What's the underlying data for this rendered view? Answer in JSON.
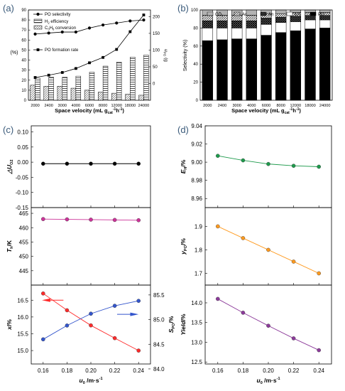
{
  "panel_labels": {
    "a": "(a)",
    "b": "(b)",
    "c": "(c)",
    "d": "(d)"
  },
  "colors": {
    "panel_label": "#3a5a7a",
    "green": "#1e9a4c",
    "orange": "#ff9a1e",
    "purple": "#8c3a9a",
    "magenta": "#cc3399",
    "red": "#ff2a2a",
    "blue": "#3355cc",
    "black": "#000000"
  },
  "chart_data": [
    {
      "id": "a",
      "type": "bar",
      "categories": [
        "2000",
        "2400",
        "3000",
        "4000",
        "6000",
        "8000",
        "12000",
        "18000",
        "24000"
      ],
      "xlabel": "Space velocity (mL g",
      "xlabel_sub": "cat",
      "xlabel_sup": "-1",
      "xlabel_tail": "h",
      "xlabel_end": ")",
      "ylabel_left": "(%)",
      "ylabel_right": "u",
      "ylabel_right_sub": "PO",
      "ylabel_right_tail": " (g",
      "ylim_left": [
        0,
        90
      ],
      "yticks_left": [
        "0",
        "10",
        "20",
        "30",
        "40",
        "50",
        "60",
        "70",
        "80",
        "90"
      ],
      "ylim_right": [
        -50,
        220
      ],
      "yticks_right": [
        "0",
        "50",
        "100",
        "150",
        "200"
      ],
      "legend": [
        "PO selectivity",
        "H",
        "C",
        "PO formation rate"
      ],
      "legend_full": {
        "h2": {
          "base": "H",
          "sub": "2",
          "tail": " efficiency"
        },
        "c3h6": {
          "base": "C",
          "sub1": "3",
          "mid": "H",
          "sub2": "6",
          "tail": " conversion"
        }
      },
      "series": [
        {
          "name": "PO selectivity",
          "kind": "line",
          "axis": "left",
          "values": [
            66,
            67,
            68,
            68,
            72,
            75,
            77,
            79,
            80
          ]
        },
        {
          "name": "PO formation rate",
          "kind": "line",
          "axis": "right",
          "values": [
            18,
            25,
            33,
            45,
            62,
            78,
            102,
            155,
            205
          ]
        },
        {
          "name": "H2 efficiency",
          "kind": "bar",
          "axis": "left",
          "values": [
            22,
            23,
            23,
            24,
            28,
            34,
            38,
            43,
            45
          ]
        },
        {
          "name": "C3H6 conversion",
          "kind": "bar",
          "axis": "left",
          "values": [
            15,
            14,
            14,
            12,
            10,
            8,
            7,
            6,
            5
          ]
        }
      ]
    },
    {
      "id": "b",
      "type": "bar",
      "stacked": true,
      "categories": [
        "2000",
        "2400",
        "3000",
        "4000",
        "6000",
        "8000",
        "12000",
        "18000",
        "24000"
      ],
      "xlabel": "Space velocity (mL g",
      "xlabel_sub": "cat",
      "xlabel_sup": "-1",
      "xlabel_tail": "h",
      "xlabel_end": ")",
      "ylabel": "Selectivity (%)",
      "ylim": [
        0,
        100
      ],
      "yticks": [
        "0",
        "20",
        "40",
        "60",
        "80",
        "100"
      ],
      "legend": [
        "CO",
        "Ac",
        "An",
        "EA",
        "PO"
      ],
      "series": [
        {
          "name": "PO",
          "values": [
            66,
            67,
            68,
            68,
            72,
            75,
            77,
            79,
            80
          ]
        },
        {
          "name": "EA",
          "values": [
            14,
            13,
            12,
            12,
            12,
            11,
            10,
            10,
            9
          ]
        },
        {
          "name": "An",
          "values": [
            8,
            8,
            8,
            8,
            7,
            6,
            6,
            5,
            5
          ]
        },
        {
          "name": "Ac",
          "values": [
            6,
            6,
            6,
            6,
            5,
            4,
            4,
            3,
            3
          ]
        },
        {
          "name": "CO2",
          "values": [
            6,
            6,
            6,
            6,
            4,
            4,
            3,
            3,
            3
          ]
        }
      ]
    },
    {
      "id": "c",
      "type": "line",
      "x": [
        0.16,
        0.18,
        0.2,
        0.22,
        0.24
      ],
      "xlim": [
        0.15,
        0.25
      ],
      "xticks": [
        "0.16",
        "0.18",
        "0.20",
        "0.22",
        "0.24"
      ],
      "xlabel": "u",
      "xlabel_sub": "0",
      "xlabel_tail": " /m·s",
      "xlabel_sup": "-1",
      "subplots": [
        {
          "ylabel": "△U",
          "ylabel_sub": "O2",
          "ylim": [
            -0.15,
            0.12
          ],
          "yticks": [
            "0.10",
            "0.05",
            "0.00",
            "-0.05",
            "-0.10",
            "-0.15"
          ],
          "series": [
            {
              "values": [
                -0.005,
                -0.005,
                -0.005,
                -0.005,
                -0.005
              ],
              "color": "#000000"
            }
          ]
        },
        {
          "ylabel": "T",
          "ylabel_sub": "h",
          "ylabel_tail": "/K",
          "ylim": [
            440,
            467
          ],
          "yticks": [
            "465",
            "460",
            "455",
            "450",
            "445"
          ],
          "series": [
            {
              "values": [
                463.0,
                462.9,
                462.8,
                462.7,
                462.6
              ],
              "color": "#cc3399"
            }
          ]
        },
        {
          "ylabel": "x",
          "ylabel_tail": "/%",
          "ylabel_right": "S",
          "ylabel_right_sub": "PO",
          "ylabel_right_tail": "/%",
          "ylim": [
            14.6,
            16.95
          ],
          "yticks": [
            "16.5",
            "16.0",
            "15.5",
            "15.0"
          ],
          "ylim_right": [
            84.1,
            85.7
          ],
          "yticks_right": [
            "85.5",
            "85.0",
            "84.5",
            "84.0"
          ],
          "series": [
            {
              "axis": "left",
              "values": [
                16.7,
                16.2,
                15.75,
                15.37,
                15.0
              ],
              "color": "#ff2a2a"
            },
            {
              "axis": "right",
              "values": [
                84.6,
                84.88,
                85.12,
                85.28,
                85.38
              ],
              "color": "#3355cc"
            }
          ]
        }
      ]
    },
    {
      "id": "d",
      "type": "line",
      "x": [
        0.16,
        0.18,
        0.2,
        0.22,
        0.24
      ],
      "xlim": [
        0.15,
        0.25
      ],
      "xticks": [
        "0.16",
        "0.18",
        "0.20",
        "0.22",
        "0.24"
      ],
      "xlabel": "u",
      "xlabel_sub": "0",
      "xlabel_tail": " /m·s",
      "xlabel_sup": "-1",
      "subplots": [
        {
          "ylabel": "E",
          "ylabel_sub": "H",
          "ylabel_tail": "/%",
          "ylim": [
            8.95,
            9.04
          ],
          "yticks": [
            "9.04",
            "9.02",
            "9.00",
            "8.98",
            "8.96"
          ],
          "series": [
            {
              "values": [
                9.007,
                9.002,
                8.998,
                8.996,
                8.995
              ],
              "color": "#1e9a4c"
            }
          ]
        },
        {
          "ylabel": "y",
          "ylabel_sub": "PO",
          "ylabel_tail": "/%",
          "ylim": [
            1.65,
            1.98
          ],
          "yticks": [
            "1.9",
            "1.8",
            "1.7"
          ],
          "series": [
            {
              "values": [
                1.9,
                1.85,
                1.8,
                1.75,
                1.7
              ],
              "color": "#ff9a1e"
            }
          ]
        },
        {
          "ylabel": "Yield",
          "ylabel_tail": "/%",
          "ylim": [
            12.45,
            14.45
          ],
          "yticks": [
            "14.0",
            "13.5",
            "13.0",
            "12.5"
          ],
          "series": [
            {
              "values": [
                14.1,
                13.75,
                13.42,
                13.1,
                12.8
              ],
              "color": "#8c3a9a"
            }
          ]
        }
      ]
    }
  ]
}
